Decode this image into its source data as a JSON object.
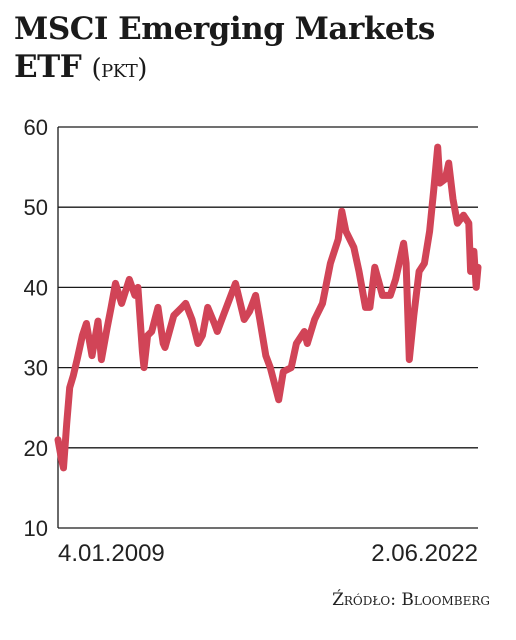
{
  "title": {
    "main": "MSCI Emerging Markets ETF",
    "unit": "(pkt)"
  },
  "source": "Źródło: Bloomberg",
  "colors": {
    "line": "#d14457",
    "grid": "#1a1a1a"
  },
  "chart_data": {
    "type": "line",
    "title": "MSCI Emerging Markets ETF",
    "ylabel": "pkt",
    "ylim": [
      10,
      60
    ],
    "yticks": [
      10,
      20,
      30,
      40,
      50,
      60
    ],
    "xlim": [
      "2009-01-04",
      "2022-06-02"
    ],
    "x_tick_labels": [
      "4.01.2009",
      "2.06.2022"
    ],
    "grid": "horizontal",
    "series": [
      {
        "points": [
          [
            "2009-01-04",
            21.0
          ],
          [
            "2009-02-15",
            18.5
          ],
          [
            "2009-03-09",
            17.5
          ],
          [
            "2009-04-15",
            23.0
          ],
          [
            "2009-05-20",
            27.5
          ],
          [
            "2009-07-01",
            29.0
          ],
          [
            "2009-08-15",
            31.0
          ],
          [
            "2009-10-15",
            34.0
          ],
          [
            "2009-12-01",
            35.5
          ],
          [
            "2010-02-05",
            31.5
          ],
          [
            "2010-04-15",
            35.8
          ],
          [
            "2010-05-25",
            31.0
          ],
          [
            "2010-08-01",
            35.0
          ],
          [
            "2010-09-15",
            37.5
          ],
          [
            "2010-11-05",
            40.5
          ],
          [
            "2011-01-15",
            38.0
          ],
          [
            "2011-04-15",
            41.0
          ],
          [
            "2011-06-20",
            39.0
          ],
          [
            "2011-07-25",
            40.0
          ],
          [
            "2011-09-15",
            32.0
          ],
          [
            "2011-10-04",
            30.0
          ],
          [
            "2011-11-15",
            34.0
          ],
          [
            "2012-01-01",
            34.5
          ],
          [
            "2012-03-15",
            37.5
          ],
          [
            "2012-05-15",
            33.0
          ],
          [
            "2012-06-05",
            32.5
          ],
          [
            "2012-09-15",
            36.5
          ],
          [
            "2012-12-20",
            37.5
          ],
          [
            "2013-02-01",
            38.0
          ],
          [
            "2013-04-15",
            36.0
          ],
          [
            "2013-06-24",
            33.0
          ],
          [
            "2013-08-15",
            34.0
          ],
          [
            "2013-10-15",
            37.5
          ],
          [
            "2014-01-01",
            35.5
          ],
          [
            "2014-02-04",
            34.5
          ],
          [
            "2014-04-15",
            36.5
          ],
          [
            "2014-09-05",
            40.5
          ],
          [
            "2014-12-15",
            36.0
          ],
          [
            "2015-02-15",
            37.0
          ],
          [
            "2015-04-27",
            39.0
          ],
          [
            "2015-06-15",
            36.0
          ],
          [
            "2015-08-24",
            31.5
          ],
          [
            "2015-10-15",
            30.0
          ],
          [
            "2016-01-21",
            26.0
          ],
          [
            "2016-03-15",
            29.5
          ],
          [
            "2016-06-15",
            30.0
          ],
          [
            "2016-08-15",
            33.0
          ],
          [
            "2016-11-15",
            34.5
          ],
          [
            "2016-12-20",
            33.0
          ],
          [
            "2017-03-15",
            36.0
          ],
          [
            "2017-06-15",
            38.0
          ],
          [
            "2017-09-15",
            43.0
          ],
          [
            "2017-12-15",
            46.0
          ],
          [
            "2018-01-26",
            49.5
          ],
          [
            "2018-03-15",
            47.0
          ],
          [
            "2018-06-15",
            45.0
          ],
          [
            "2018-08-15",
            42.0
          ],
          [
            "2018-10-29",
            37.5
          ],
          [
            "2018-12-20",
            37.5
          ],
          [
            "2019-02-15",
            42.5
          ],
          [
            "2019-05-15",
            39.0
          ],
          [
            "2019-08-15",
            39.0
          ],
          [
            "2019-10-15",
            41.0
          ],
          [
            "2020-01-17",
            45.5
          ],
          [
            "2020-02-15",
            43.0
          ],
          [
            "2020-03-23",
            31.0
          ],
          [
            "2020-05-15",
            36.5
          ],
          [
            "2020-07-15",
            42.0
          ],
          [
            "2020-09-15",
            43.0
          ],
          [
            "2020-11-15",
            47.0
          ],
          [
            "2020-12-31",
            52.0
          ],
          [
            "2021-02-17",
            57.5
          ],
          [
            "2021-03-15",
            53.0
          ],
          [
            "2021-05-15",
            53.5
          ],
          [
            "2021-06-25",
            55.5
          ],
          [
            "2021-08-15",
            51.0
          ],
          [
            "2021-10-05",
            48.0
          ],
          [
            "2021-12-15",
            49.0
          ],
          [
            "2022-02-15",
            48.0
          ],
          [
            "2022-03-08",
            42.0
          ],
          [
            "2022-04-15",
            44.5
          ],
          [
            "2022-05-12",
            40.0
          ],
          [
            "2022-06-02",
            42.5
          ]
        ]
      }
    ]
  }
}
